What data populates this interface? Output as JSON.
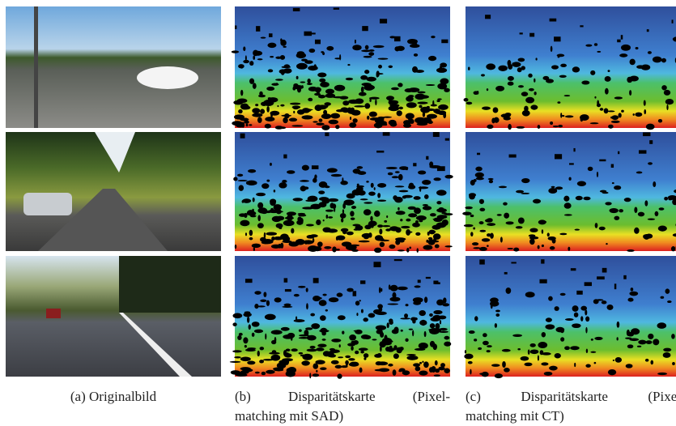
{
  "captions": [
    {
      "lines": [
        "(a) Originalbild"
      ]
    },
    {
      "lines": [
        "(b) Disparitätskarte (Pixel-",
        "matching mit SAD)"
      ]
    },
    {
      "lines": [
        "(c) Disparitätskarte (Pixel",
        "matching mit CT)"
      ]
    }
  ]
}
